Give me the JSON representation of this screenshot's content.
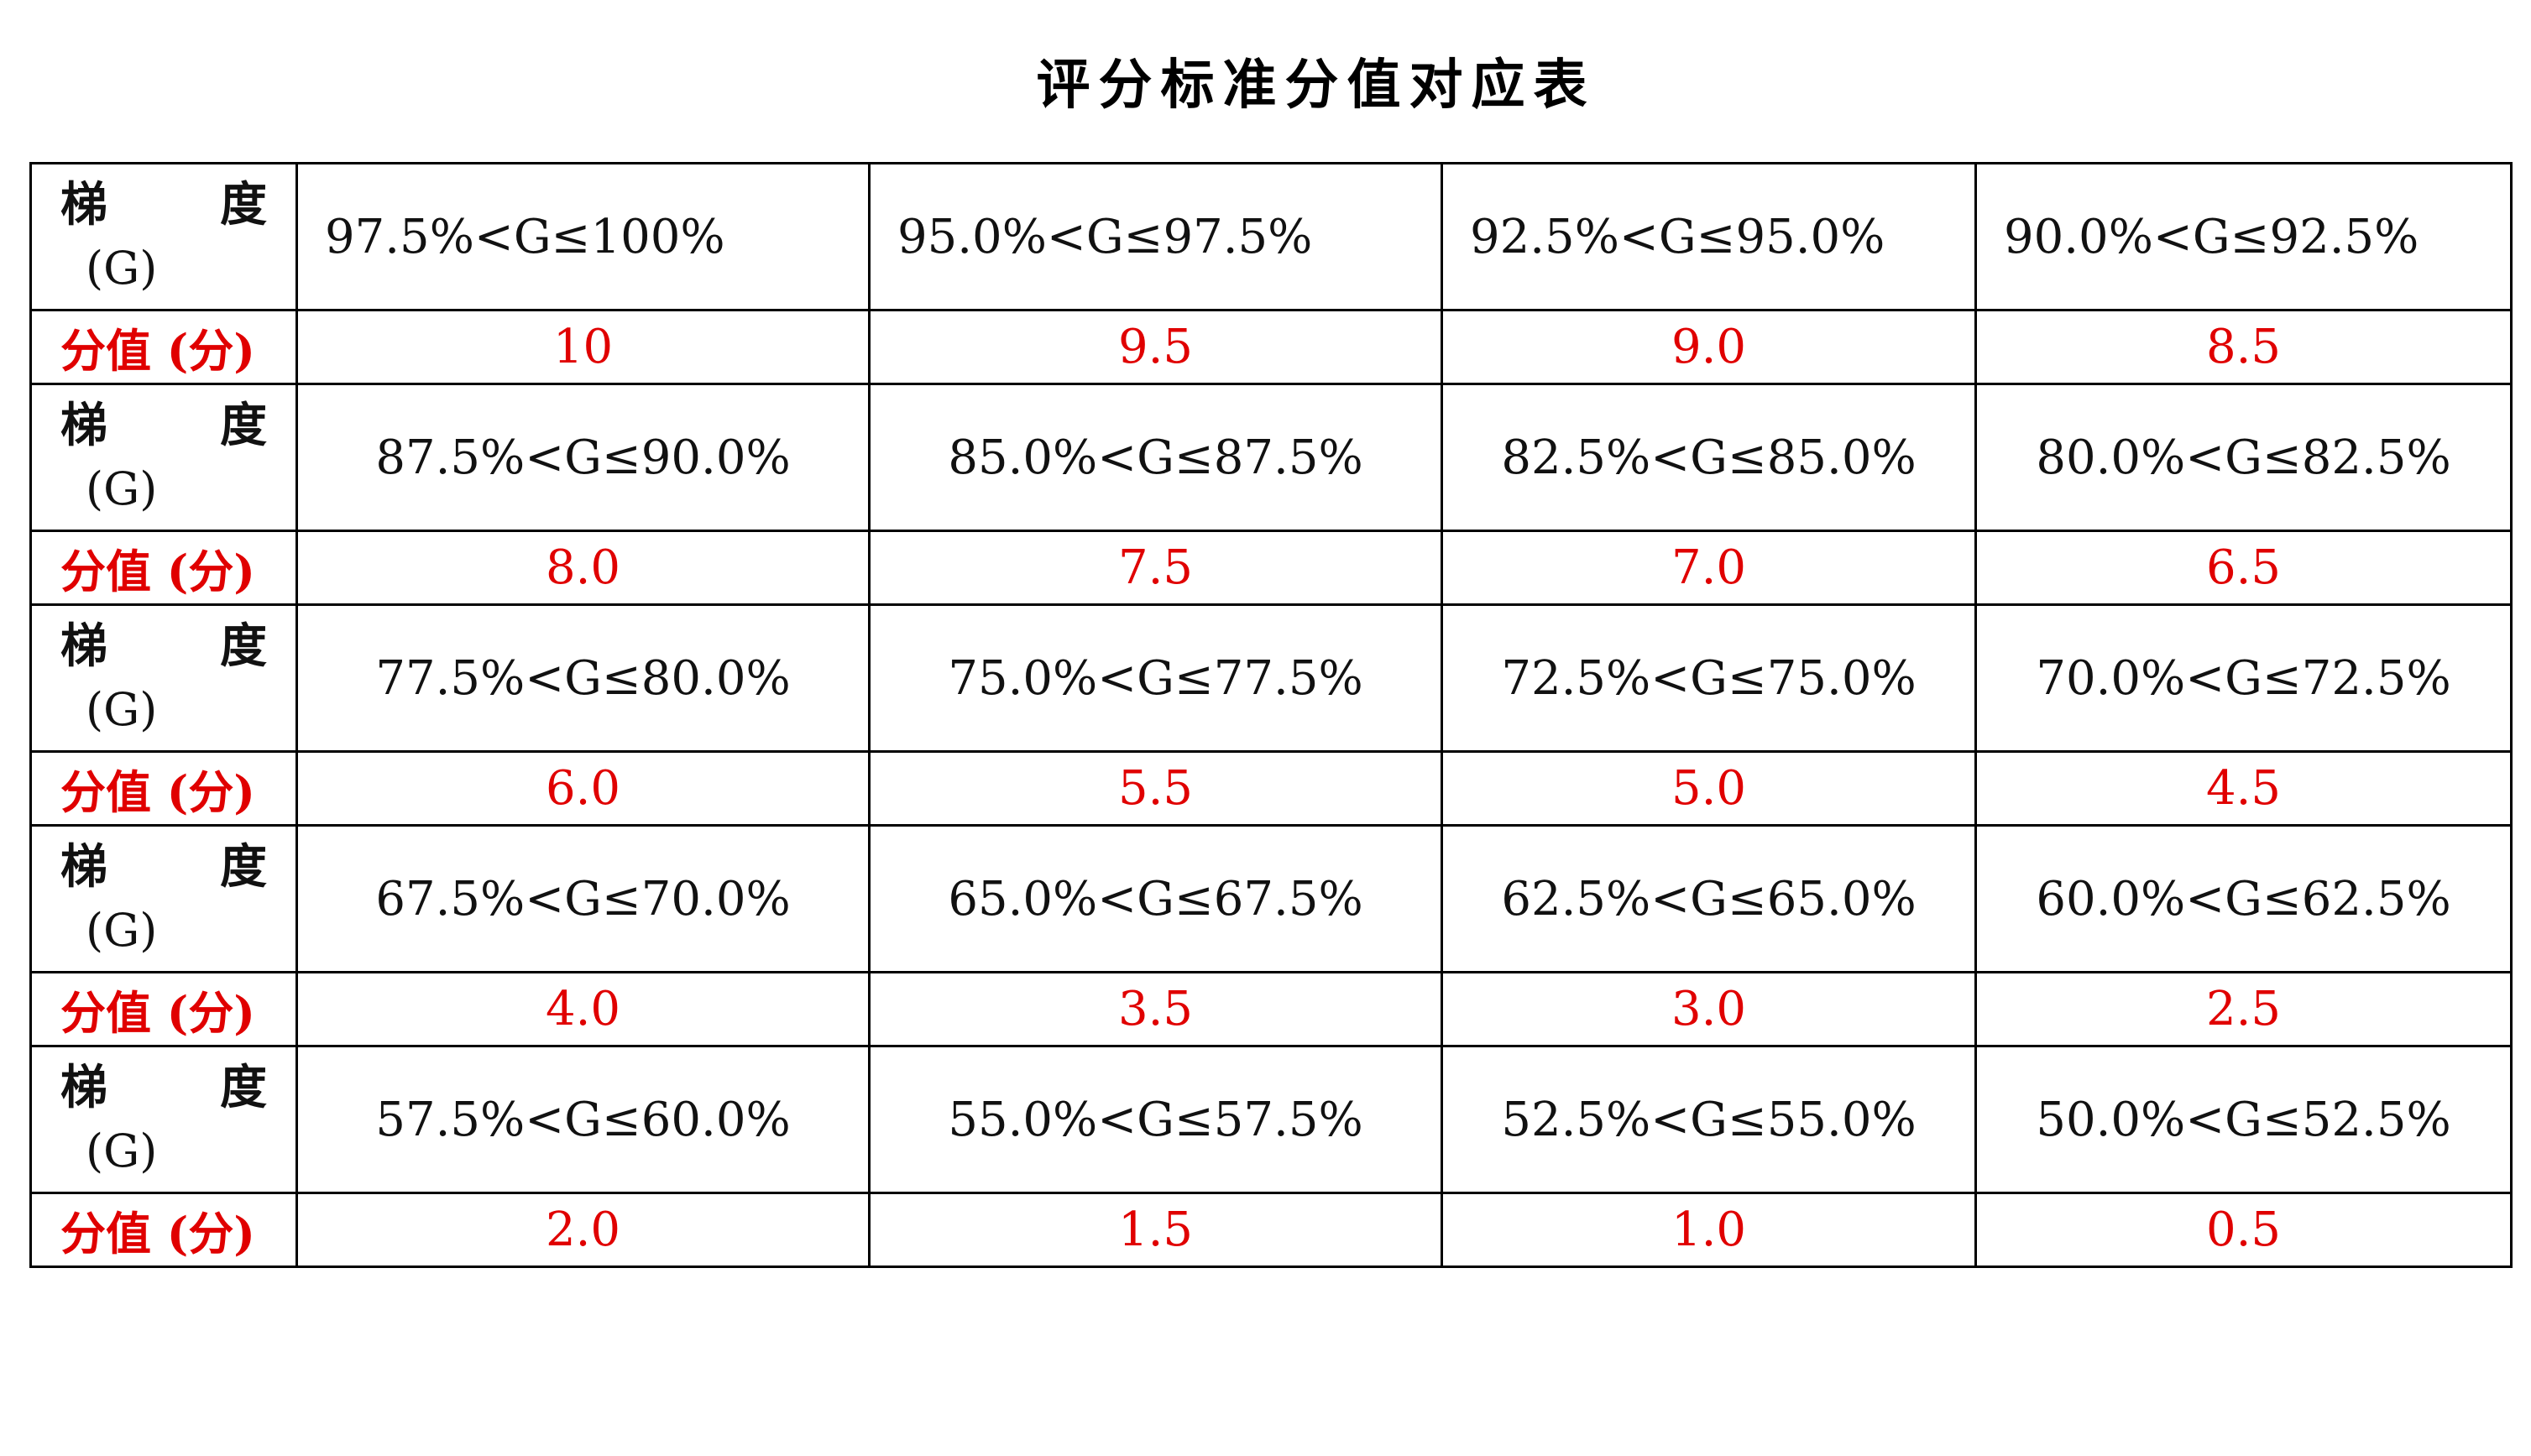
{
  "title": "评分标准分值对应表",
  "label_gradient_a": "梯",
  "label_gradient_b": "度",
  "label_gradient_c": "(G)",
  "label_score": "分值 (分)",
  "colors": {
    "score_text": "#e00000",
    "text": "#000000"
  },
  "rows": [
    {
      "ranges": [
        "97.5%<G≤100%",
        "95.0%<G≤97.5%",
        "92.5%<G≤95.0%",
        "90.0%<G≤92.5%"
      ],
      "scores": [
        "10",
        "9.5",
        "9.0",
        "8.5"
      ]
    },
    {
      "ranges": [
        "87.5%<G≤90.0%",
        "85.0%<G≤87.5%",
        "82.5%<G≤85.0%",
        "80.0%<G≤82.5%"
      ],
      "scores": [
        "8.0",
        "7.5",
        "7.0",
        "6.5"
      ]
    },
    {
      "ranges": [
        "77.5%<G≤80.0%",
        "75.0%<G≤77.5%",
        "72.5%<G≤75.0%",
        "70.0%<G≤72.5%"
      ],
      "scores": [
        "6.0",
        "5.5",
        "5.0",
        "4.5"
      ]
    },
    {
      "ranges": [
        "67.5%<G≤70.0%",
        "65.0%<G≤67.5%",
        "62.5%<G≤65.0%",
        "60.0%<G≤62.5%"
      ],
      "scores": [
        "4.0",
        "3.5",
        "3.0",
        "2.5"
      ]
    },
    {
      "ranges": [
        "57.5%<G≤60.0%",
        "55.0%<G≤57.5%",
        "52.5%<G≤55.0%",
        "50.0%<G≤52.5%"
      ],
      "scores": [
        "2.0",
        "1.5",
        "1.0",
        "0.5"
      ]
    }
  ]
}
